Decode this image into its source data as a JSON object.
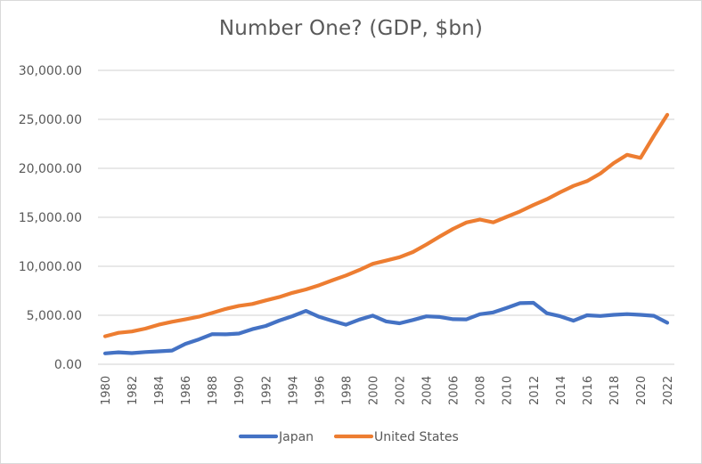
{
  "chart_data": {
    "type": "line",
    "title": "Number One? (GDP, $bn)",
    "xlabel": "",
    "ylabel": "",
    "ylim": [
      0,
      30000
    ],
    "yticks": [
      0,
      5000,
      10000,
      15000,
      20000,
      25000,
      30000
    ],
    "ytick_labels": [
      "0.00",
      "5,000.00",
      "10,000.00",
      "15,000.00",
      "20,000.00",
      "25,000.00",
      "30,000.00"
    ],
    "grid": true,
    "legend_position": "bottom",
    "x": [
      1980,
      1981,
      1982,
      1983,
      1984,
      1985,
      1986,
      1987,
      1988,
      1989,
      1990,
      1991,
      1992,
      1993,
      1994,
      1995,
      1996,
      1997,
      1998,
      1999,
      2000,
      2001,
      2002,
      2003,
      2004,
      2005,
      2006,
      2007,
      2008,
      2009,
      2010,
      2011,
      2012,
      2013,
      2014,
      2015,
      2016,
      2017,
      2018,
      2019,
      2020,
      2021,
      2022
    ],
    "xtick_labels": [
      "1980",
      "1982",
      "1984",
      "1986",
      "1988",
      "1990",
      "1992",
      "1994",
      "1996",
      "1998",
      "2000",
      "2002",
      "2004",
      "2006",
      "2008",
      "2010",
      "2012",
      "2014",
      "2016",
      "2018",
      "2020",
      "2022"
    ],
    "series": [
      {
        "name": "Japan",
        "color": "#4472c4",
        "values": [
          1105,
          1218,
          1134,
          1243,
          1318,
          1398,
          2079,
          2532,
          3072,
          3054,
          3133,
          3584,
          3909,
          4454,
          4907,
          5449,
          4833,
          4414,
          4033,
          4562,
          4968,
          4374,
          4182,
          4519,
          4893,
          4831,
          4601,
          4579,
          5106,
          5289,
          5759,
          6233,
          6272,
          5212,
          4897,
          4445,
          5004,
          4931,
          5041,
          5118,
          5048,
          4941,
          4232
        ]
      },
      {
        "name": "United States",
        "color": "#ed7d31",
        "values": [
          2857,
          3207,
          3343,
          3634,
          4037,
          4339,
          4580,
          4855,
          5236,
          5642,
          5963,
          6158,
          6520,
          6859,
          7287,
          7640,
          8073,
          8578,
          9063,
          9631,
          10251,
          10582,
          10929,
          11457,
          12217,
          13039,
          13816,
          14474,
          14770,
          14478,
          15049,
          15600,
          16254,
          16843,
          17551,
          18206,
          18695,
          19477,
          20533,
          21381,
          21060,
          23315,
          25464
        ]
      }
    ]
  }
}
